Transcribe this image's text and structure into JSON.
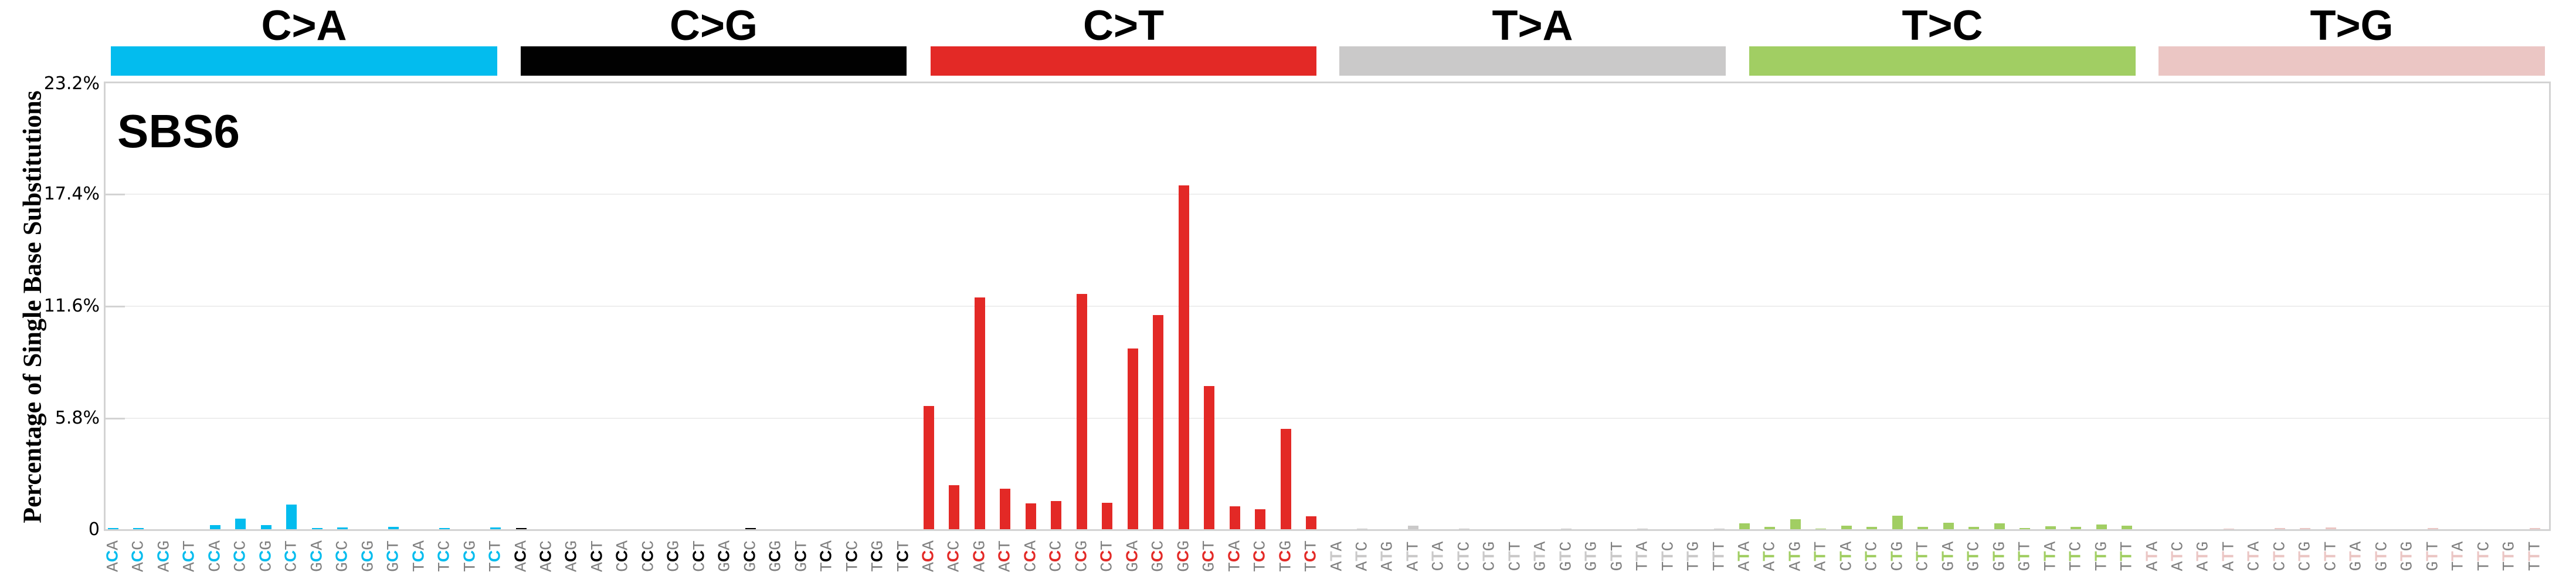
{
  "chart_data": {
    "type": "bar",
    "title": "SBS6",
    "xlabel": "",
    "ylabel": "Percentage of Single Base Substitutions",
    "ylim": [
      0,
      23.2
    ],
    "yticks": [
      "0",
      "5.8%",
      "11.6%",
      "17.4%",
      "23.2%"
    ],
    "ytick_values": [
      0,
      5.8,
      11.6,
      17.4,
      23.2
    ],
    "grid": true,
    "legend_position": "none",
    "groups": [
      {
        "name": "C>A",
        "color": "#03bcee",
        "ref": "C",
        "contexts": [
          "ACA",
          "ACC",
          "ACG",
          "ACT",
          "CCA",
          "CCC",
          "CCG",
          "CCT",
          "GCA",
          "GCC",
          "GCG",
          "GCT",
          "TCA",
          "TCC",
          "TCG",
          "TCT"
        ],
        "values": [
          0.08,
          0.08,
          0.0,
          0.04,
          0.24,
          0.57,
          0.24,
          1.3,
          0.08,
          0.12,
          0.04,
          0.16,
          0.04,
          0.08,
          0.04,
          0.12
        ]
      },
      {
        "name": "C>G",
        "color": "#010101",
        "ref": "C",
        "contexts": [
          "ACA",
          "ACC",
          "ACG",
          "ACT",
          "CCA",
          "CCC",
          "CCG",
          "CCT",
          "GCA",
          "GCC",
          "GCG",
          "GCT",
          "TCA",
          "TCC",
          "TCG",
          "TCT"
        ],
        "values": [
          0.08,
          0.03,
          0.0,
          0.03,
          0.0,
          0.0,
          0.03,
          0.0,
          0.0,
          0.09,
          0.0,
          0.03,
          0.0,
          0.03,
          0.0,
          0.03
        ]
      },
      {
        "name": "C>T",
        "color": "#e32926",
        "ref": "C",
        "contexts": [
          "ACA",
          "ACC",
          "ACG",
          "ACT",
          "CCA",
          "CCC",
          "CCG",
          "CCT",
          "GCA",
          "GCC",
          "GCG",
          "GCT",
          "TCA",
          "TCC",
          "TCG",
          "TCT"
        ],
        "values": [
          6.4,
          2.31,
          12.02,
          2.12,
          1.36,
          1.49,
          12.2,
          1.39,
          9.39,
          11.1,
          17.84,
          7.43,
          1.21,
          1.07,
          5.22,
          0.7
        ]
      },
      {
        "name": "T>A",
        "color": "#cac9c9",
        "ref": "T",
        "contexts": [
          "ATA",
          "ATC",
          "ATG",
          "ATT",
          "CTA",
          "CTC",
          "CTG",
          "CTT",
          "GTA",
          "GTC",
          "GTG",
          "GTT",
          "TTA",
          "TTC",
          "TTG",
          "TTT"
        ],
        "values": [
          0.02,
          0.06,
          0.0,
          0.22,
          0.0,
          0.06,
          0.02,
          0.02,
          0.0,
          0.06,
          0.02,
          0.02,
          0.06,
          0.02,
          0.0,
          0.06
        ]
      },
      {
        "name": "T>C",
        "color": "#a1ce63",
        "ref": "T",
        "contexts": [
          "ATA",
          "ATC",
          "ATG",
          "ATT",
          "CTA",
          "CTC",
          "CTG",
          "CTT",
          "GTA",
          "GTC",
          "GTG",
          "GTT",
          "TTA",
          "TTC",
          "TTG",
          "TTT"
        ],
        "values": [
          0.32,
          0.14,
          0.56,
          0.06,
          0.22,
          0.14,
          0.72,
          0.14,
          0.35,
          0.14,
          0.32,
          0.1,
          0.18,
          0.14,
          0.26,
          0.22
        ]
      },
      {
        "name": "T>G",
        "color": "#ebc6c4",
        "ref": "T",
        "contexts": [
          "ATA",
          "ATC",
          "ATG",
          "ATT",
          "CTA",
          "CTC",
          "CTG",
          "CTT",
          "GTA",
          "GTC",
          "GTG",
          "GTT",
          "TTA",
          "TTC",
          "TTG",
          "TTT"
        ],
        "values": [
          0.0,
          0.02,
          0.02,
          0.07,
          0.0,
          0.08,
          0.08,
          0.12,
          0.0,
          0.02,
          0.02,
          0.08,
          0.02,
          0.02,
          0.02,
          0.1
        ]
      }
    ]
  },
  "header": {
    "titles": [
      "C>A",
      "C>G",
      "C>T",
      "T>A",
      "T>C",
      "T>G"
    ]
  },
  "plot": {
    "signature_label": "SBS6",
    "y_axis_label": "Percentage of Single Base Substitutions",
    "y_ticks": [
      "0",
      "5.8%",
      "11.6%",
      "17.4%",
      "23.2%"
    ]
  }
}
